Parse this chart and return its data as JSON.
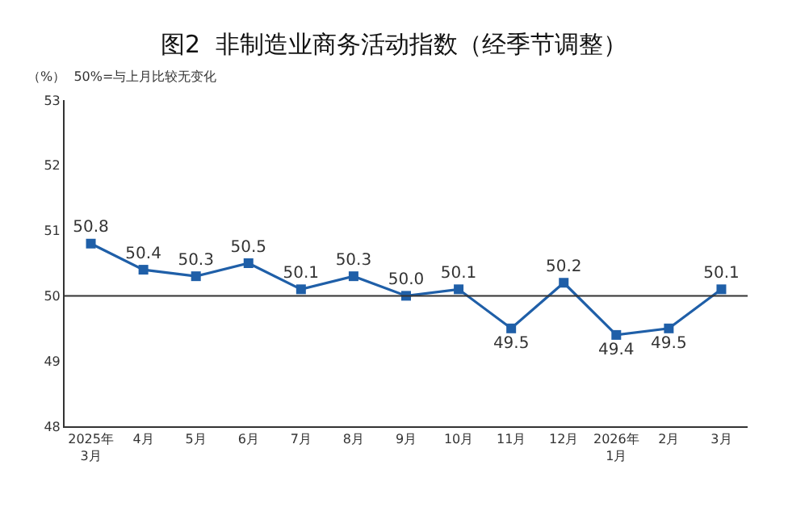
{
  "chart_data": {
    "type": "line",
    "title": "图2  非制造业商务活动指数（经季节调整）",
    "annotations": [
      "（%）  50%=与上月比较无变化"
    ],
    "categories": [
      "2025年\n3月",
      "4月",
      "5月",
      "6月",
      "7月",
      "8月",
      "9月",
      "10月",
      "11月",
      "12月",
      "2026年\n1月",
      "2月",
      "3月"
    ],
    "series": [
      {
        "color": "#1f5fa8",
        "values": [
          50.8,
          50.4,
          50.3,
          50.5,
          50.1,
          50.3,
          50.0,
          50.1,
          49.5,
          50.2,
          49.4,
          49.5,
          50.1
        ]
      }
    ],
    "value_labels": [
      "50.8",
      "50.4",
      "50.3",
      "50.5",
      "50.1",
      "50.3",
      "50.0",
      "50.1",
      "49.5",
      "50.2",
      "49.4",
      "49.5",
      "50.1"
    ],
    "ylim": [
      48,
      53
    ],
    "yticks": [
      48,
      49,
      50,
      51,
      52,
      53
    ],
    "ref_lines": [
      {
        "axis": "y",
        "value": 50,
        "color": "#333333"
      }
    ],
    "marker": "square",
    "line_style": "solid",
    "legend": false
  }
}
